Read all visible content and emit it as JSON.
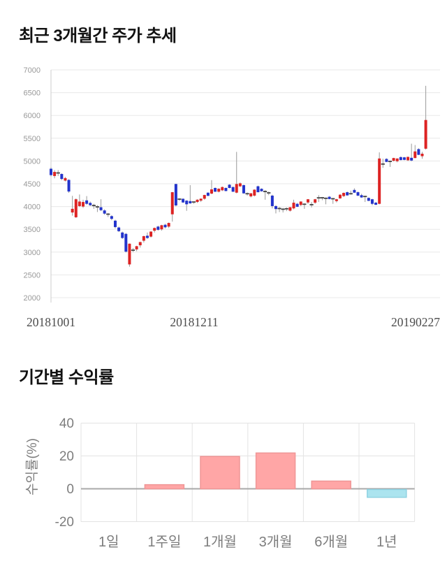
{
  "chart_data": [
    {
      "type": "candlestick",
      "title": "최근 3개월간 주가 추세",
      "xlabel": "",
      "ylabel": "",
      "x_axis_labels": [
        "20181001",
        "20181211",
        "20190227"
      ],
      "y_ticks": [
        7000,
        6500,
        6000,
        5500,
        5000,
        4500,
        4000,
        3500,
        3000,
        2500,
        2000
      ],
      "ylim": [
        2000,
        7000
      ],
      "grid": "horizontal",
      "colors": {
        "up": "#dd2323",
        "down": "#2233cc",
        "doji": "#444444",
        "wick": "#9a9a9a",
        "grid": "#e8e8e8",
        "axis": "#cccccc",
        "tick_text": "#999999",
        "date_text": "#4d4d4d"
      },
      "ohlc": [
        [
          4830,
          4860,
          4660,
          4690
        ],
        [
          4670,
          4800,
          4620,
          4760
        ],
        [
          4735,
          4800,
          4670,
          4740
        ],
        [
          4715,
          4730,
          4580,
          4605
        ],
        [
          4570,
          4650,
          4550,
          4625
        ],
        [
          4585,
          4600,
          4300,
          4330
        ],
        [
          3870,
          4235,
          3800,
          3950
        ],
        [
          3765,
          4180,
          3750,
          4160
        ],
        [
          4010,
          4265,
          3990,
          4110
        ],
        [
          4000,
          4150,
          3970,
          4100
        ],
        [
          4135,
          4230,
          4040,
          4060
        ],
        [
          4080,
          4110,
          4010,
          4030
        ],
        [
          4020,
          4060,
          3950,
          4025
        ],
        [
          3995,
          4030,
          3880,
          3990
        ],
        [
          3985,
          4160,
          3900,
          3920
        ],
        [
          3915,
          3940,
          3820,
          3845
        ],
        [
          3830,
          3860,
          3770,
          3835
        ],
        [
          3790,
          3810,
          3700,
          3730
        ],
        [
          3690,
          3710,
          3520,
          3550
        ],
        [
          3540,
          3560,
          3440,
          3460
        ],
        [
          3430,
          3450,
          3290,
          3310
        ],
        [
          3400,
          3420,
          2990,
          3010
        ],
        [
          2730,
          3190,
          2680,
          3185
        ],
        [
          3040,
          3090,
          3000,
          3045
        ],
        [
          3060,
          3140,
          3020,
          3130
        ],
        [
          3150,
          3230,
          3100,
          3220
        ],
        [
          3250,
          3360,
          3210,
          3350
        ],
        [
          3360,
          3430,
          3290,
          3310
        ],
        [
          3340,
          3460,
          3320,
          3450
        ],
        [
          3470,
          3540,
          3430,
          3530
        ],
        [
          3560,
          3580,
          3470,
          3490
        ],
        [
          3500,
          3600,
          3470,
          3590
        ],
        [
          3600,
          3620,
          3520,
          3545
        ],
        [
          3560,
          3650,
          3530,
          3640
        ],
        [
          3830,
          4320,
          3670,
          4315
        ],
        [
          4495,
          4500,
          4000,
          4025
        ],
        [
          4160,
          4180,
          4130,
          4165
        ],
        [
          4170,
          4180,
          4080,
          4090
        ],
        [
          4130,
          4140,
          3906,
          4050
        ],
        [
          4120,
          4470,
          4060,
          4070
        ],
        [
          4100,
          4110,
          4060,
          4100
        ],
        [
          4100,
          4160,
          4080,
          4150
        ],
        [
          4130,
          4180,
          4100,
          4172
        ],
        [
          4172,
          4260,
          4150,
          4254
        ],
        [
          4305,
          4310,
          4230,
          4235
        ],
        [
          4285,
          4580,
          4270,
          4377
        ],
        [
          4408,
          4420,
          4320,
          4326
        ],
        [
          4326,
          4400,
          4310,
          4392
        ],
        [
          4357,
          4440,
          4340,
          4428
        ],
        [
          4408,
          4420,
          4335,
          4341
        ],
        [
          4480,
          4490,
          4400,
          4408
        ],
        [
          4428,
          4440,
          4320,
          4326
        ],
        [
          4305,
          5200,
          4290,
          4495
        ],
        [
          4444,
          4530,
          4430,
          4510
        ],
        [
          4470,
          4480,
          4280,
          4290
        ],
        [
          4280,
          4310,
          4240,
          4283
        ],
        [
          4223,
          4300,
          4200,
          4290
        ],
        [
          4240,
          4380,
          4220,
          4370
        ],
        [
          4445,
          4460,
          4310,
          4315
        ],
        [
          4390,
          4400,
          4330,
          4335
        ],
        [
          4330,
          4360,
          4150,
          4330
        ],
        [
          4300,
          4330,
          4250,
          4300
        ],
        [
          4240,
          4260,
          3960,
          4010
        ],
        [
          4010,
          4030,
          3850,
          3945
        ],
        [
          3955,
          3990,
          3880,
          3958
        ],
        [
          3940,
          3970,
          3870,
          3942
        ],
        [
          3950,
          3980,
          3900,
          3952
        ],
        [
          3910,
          3990,
          3890,
          3985
        ],
        [
          3960,
          4150,
          3940,
          4085
        ],
        [
          4060,
          4080,
          3990,
          3995
        ],
        [
          4035,
          4115,
          4010,
          4110
        ],
        [
          4050,
          4070,
          3950,
          4052
        ],
        [
          4090,
          4165,
          4060,
          4160
        ],
        [
          4040,
          4100,
          3980,
          4042
        ],
        [
          4085,
          4170,
          4060,
          4160
        ],
        [
          4190,
          4250,
          4100,
          4192
        ],
        [
          4190,
          4210,
          4140,
          4195
        ],
        [
          4180,
          4200,
          4050,
          4182
        ],
        [
          4215,
          4230,
          4160,
          4165
        ],
        [
          4170,
          4190,
          4060,
          4172
        ],
        [
          4120,
          4170,
          4090,
          4160
        ],
        [
          4180,
          4270,
          4170,
          4260
        ],
        [
          4230,
          4310,
          4210,
          4300
        ],
        [
          4315,
          4330,
          4240,
          4245
        ],
        [
          4280,
          4350,
          4260,
          4283
        ],
        [
          4365,
          4400,
          4300,
          4305
        ],
        [
          4315,
          4330,
          4230,
          4240
        ],
        [
          4250,
          4280,
          4190,
          4200
        ],
        [
          4220,
          4240,
          4100,
          4222
        ],
        [
          4190,
          4200,
          4120,
          4125
        ],
        [
          4160,
          4170,
          4030,
          4060
        ],
        [
          4085,
          4100,
          4030,
          4040
        ],
        [
          4060,
          5190,
          4050,
          5055
        ],
        [
          4930,
          5050,
          4850,
          4935
        ],
        [
          5045,
          5060,
          4975,
          4980
        ],
        [
          4990,
          5010,
          4870,
          4992
        ],
        [
          5005,
          5070,
          4990,
          5065
        ],
        [
          4995,
          5060,
          4970,
          5055
        ],
        [
          5085,
          5100,
          5015,
          5020
        ],
        [
          5080,
          5090,
          5015,
          5025
        ],
        [
          5015,
          5095,
          5000,
          5090
        ],
        [
          5070,
          5380,
          4995,
          5010
        ],
        [
          5065,
          5350,
          5060,
          5210
        ],
        [
          5260,
          5280,
          5130,
          5135
        ],
        [
          5105,
          5200,
          5050,
          5160
        ],
        [
          5270,
          6650,
          5250,
          5900
        ]
      ]
    },
    {
      "type": "bar",
      "title": "기간별 수익률",
      "xlabel": "",
      "ylabel": "수익률(%)",
      "categories": [
        "1일",
        "1주일",
        "1개월",
        "3개월",
        "6개월",
        "1년"
      ],
      "values": [
        0,
        2.5,
        19.7,
        21.8,
        4.7,
        -5.2
      ],
      "y_ticks": [
        40,
        20,
        0,
        -20
      ],
      "ylim": [
        -25,
        45
      ],
      "grid": "both",
      "legend": "none",
      "colors": {
        "positive_fill": "#ffa6a6",
        "positive_stroke": "#ef9696",
        "negative_fill": "#abe4ef",
        "negative_stroke": "#8fd2e2",
        "grid": "#e3e3e3",
        "zero_line": "#a8a8a8",
        "tick_text": "#7d7d7d"
      }
    }
  ]
}
